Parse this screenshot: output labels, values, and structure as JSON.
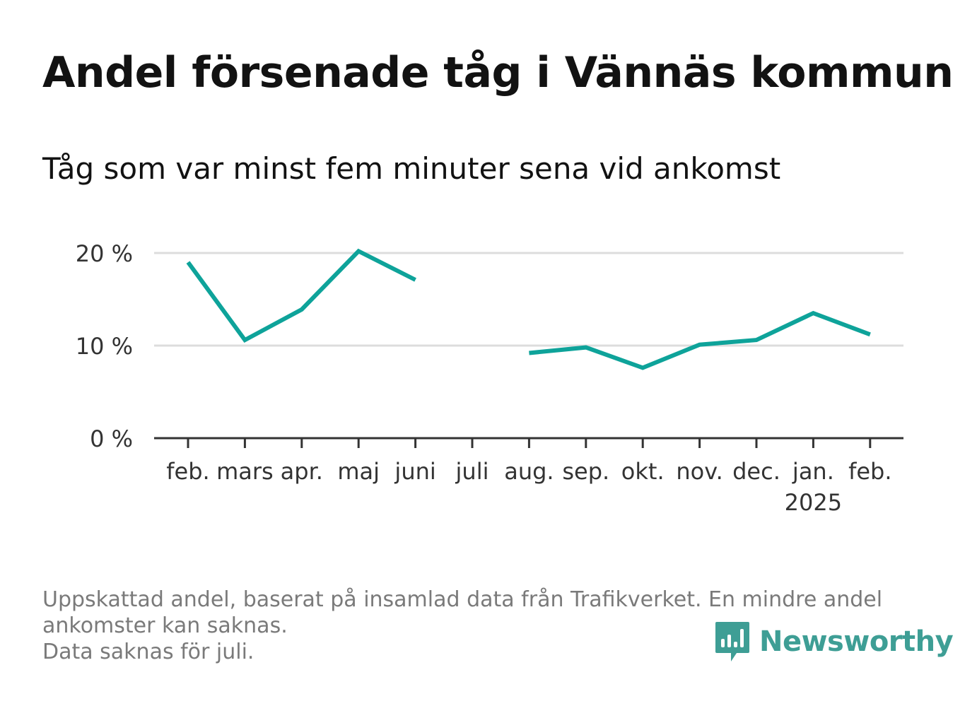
{
  "title": "Andel försenade tåg i Vännäs kommun",
  "subtitle": "Tåg som var minst fem minuter sena vid ankomst",
  "footnote": {
    "line1": "Uppskattad andel, baserat på insamlad data från Trafikverket. En mindre andel",
    "line2": "ankomster kan saknas.",
    "line3": "Data saknas för juli."
  },
  "brand": {
    "name": "Newsworthy",
    "icon": "newsworthy-logo-icon",
    "color": "#3e9e95"
  },
  "colors": {
    "line": "#0ea39a",
    "grid": "#dddddd",
    "axis": "#333333"
  },
  "chart_data": {
    "type": "line",
    "categories": [
      "feb.",
      "mars",
      "apr.",
      "maj",
      "juni",
      "juli",
      "aug.",
      "sep.",
      "okt.",
      "nov.",
      "dec.",
      "jan.",
      "feb."
    ],
    "year_labels": [
      "",
      "",
      "",
      "",
      "",
      "",
      "",
      "",
      "",
      "",
      "",
      "2025",
      ""
    ],
    "series": [
      {
        "values": [
          19.0,
          10.6,
          13.9,
          20.2,
          17.1,
          null,
          9.2,
          9.8,
          7.6,
          10.1,
          10.6,
          13.5,
          11.2
        ]
      }
    ],
    "y_ticks": [
      {
        "value": 0,
        "label": "0 %"
      },
      {
        "value": 10,
        "label": "10 %"
      },
      {
        "value": 20,
        "label": "20 %"
      }
    ],
    "ylim": [
      0,
      20
    ],
    "grid": true,
    "legend": "none",
    "xlabel": "",
    "ylabel": ""
  }
}
